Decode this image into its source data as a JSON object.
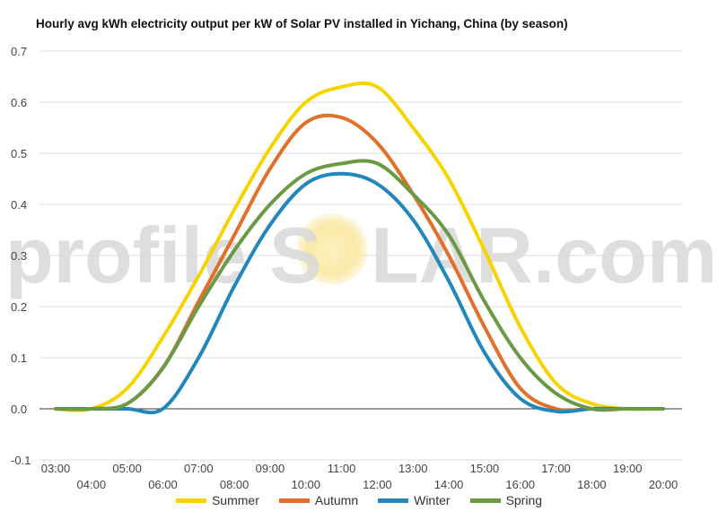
{
  "chart_data": {
    "type": "line",
    "title": "Hourly avg kWh electricity output per kW of Solar PV installed in Yichang, China (by season)",
    "xlabel": "",
    "ylabel": "",
    "ylim": [
      -0.1,
      0.7
    ],
    "yticks": [
      "0.7",
      "0.6",
      "0.5",
      "0.4",
      "0.3",
      "0.2",
      "0.1",
      "0.0",
      "-0.1"
    ],
    "x": [
      "03:00",
      "04:00",
      "05:00",
      "06:00",
      "07:00",
      "08:00",
      "09:00",
      "10:00",
      "11:00",
      "12:00",
      "13:00",
      "14:00",
      "15:00",
      "16:00",
      "17:00",
      "18:00",
      "19:00",
      "20:00"
    ],
    "grid": true,
    "legend_position": "bottom",
    "series": [
      {
        "name": "Summer",
        "color": "#f5d400",
        "values": [
          0.0,
          0.0,
          0.04,
          0.14,
          0.26,
          0.39,
          0.51,
          0.6,
          0.63,
          0.63,
          0.55,
          0.45,
          0.31,
          0.16,
          0.05,
          0.01,
          0.0,
          0.0
        ]
      },
      {
        "name": "Autumn",
        "color": "#e2702a",
        "values": [
          0.0,
          0.0,
          0.01,
          0.08,
          0.21,
          0.34,
          0.47,
          0.56,
          0.57,
          0.52,
          0.42,
          0.3,
          0.16,
          0.04,
          0.0,
          0.0,
          0.0,
          0.0
        ]
      },
      {
        "name": "Winter",
        "color": "#2288bb",
        "values": [
          0.0,
          0.0,
          0.0,
          0.0,
          0.1,
          0.24,
          0.36,
          0.44,
          0.46,
          0.44,
          0.37,
          0.25,
          0.11,
          0.02,
          -0.005,
          0.0,
          0.0,
          0.0
        ]
      },
      {
        "name": "Spring",
        "color": "#6b9a45",
        "values": [
          0.0,
          0.0,
          0.01,
          0.08,
          0.2,
          0.31,
          0.4,
          0.46,
          0.48,
          0.48,
          0.42,
          0.34,
          0.21,
          0.1,
          0.03,
          0.0,
          0.0,
          0.0
        ]
      }
    ]
  },
  "watermark": {
    "left": "profile",
    "center": "S",
    "right": "LAR.com"
  },
  "accent_colors": {
    "sun": "#fbe9a8",
    "grid": "#dddddd",
    "zero_line": "#333333"
  }
}
